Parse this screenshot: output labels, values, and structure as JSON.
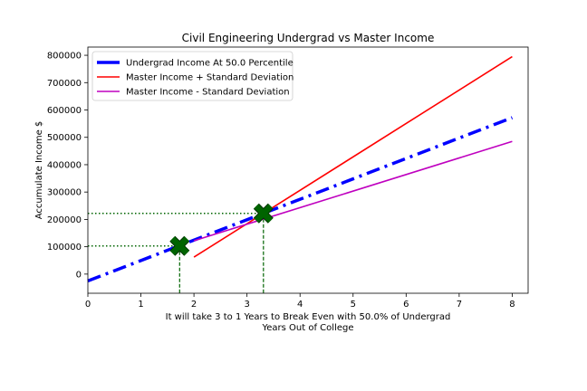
{
  "chart_data": {
    "type": "line",
    "title": "Civil Engineering Undergrad vs Master Income",
    "xlabel_lines": [
      "It will take 3 to 1 Years to Break Even with 50.0% of Undergrad",
      "Years Out of College"
    ],
    "ylabel": "Accumulate Income $",
    "xlim": [
      0,
      8.3
    ],
    "ylim": [
      -70000,
      830000
    ],
    "x_ticks": [
      0,
      1,
      2,
      3,
      4,
      5,
      6,
      7,
      8
    ],
    "y_ticks": [
      0,
      100000,
      200000,
      300000,
      400000,
      500000,
      600000,
      700000,
      800000
    ],
    "legend_position": "upper-left",
    "series": [
      {
        "name": "Undergrad Income At 50.0 Percentile",
        "color": "#0000ff",
        "style": "dashdot",
        "x": [
          0,
          8
        ],
        "y": [
          -25000,
          572000
        ]
      },
      {
        "name": "Master Income + Standard Deviation",
        "color": "#ff0000",
        "style": "solid",
        "x": [
          2,
          8
        ],
        "y": [
          62000,
          795000
        ]
      },
      {
        "name": "Master Income - Standard Deviation",
        "color": "#bf00bf",
        "style": "solid",
        "x": [
          2,
          8
        ],
        "y": [
          122000,
          485000
        ]
      }
    ],
    "break_even_points": [
      {
        "x": 1.73,
        "y": 103000
      },
      {
        "x": 3.31,
        "y": 222000
      }
    ],
    "marker_color": "#006400"
  }
}
